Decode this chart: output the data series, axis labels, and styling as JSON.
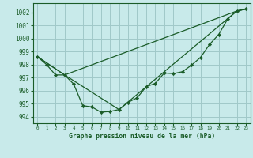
{
  "title": "Graphe pression niveau de la mer (hPa)",
  "background_color": "#c8eaea",
  "grid_color": "#a0c8c8",
  "line_color": "#1a5c28",
  "ylim": [
    993.5,
    1002.7
  ],
  "xlim": [
    -0.5,
    23.5
  ],
  "yticks": [
    994,
    995,
    996,
    997,
    998,
    999,
    1000,
    1001,
    1002
  ],
  "xticks": [
    0,
    1,
    2,
    3,
    4,
    5,
    6,
    7,
    8,
    9,
    10,
    11,
    12,
    13,
    14,
    15,
    16,
    17,
    18,
    19,
    20,
    21,
    22,
    23
  ],
  "series_main": {
    "x": [
      0,
      1,
      2,
      3,
      4,
      5,
      6,
      7,
      8,
      9,
      10,
      11,
      12,
      13,
      14,
      15,
      16,
      17,
      18,
      19,
      20,
      21,
      22,
      23
    ],
    "y": [
      998.6,
      998.0,
      997.2,
      997.2,
      996.5,
      994.85,
      994.75,
      994.35,
      994.4,
      994.55,
      995.1,
      995.45,
      996.3,
      996.55,
      997.35,
      997.3,
      997.45,
      997.95,
      998.55,
      999.55,
      1000.3,
      1001.5,
      1002.1,
      1002.25
    ]
  },
  "series_line1": {
    "x": [
      0,
      3,
      22,
      23
    ],
    "y": [
      998.6,
      997.2,
      1002.1,
      1002.25
    ]
  },
  "series_line2": {
    "x": [
      0,
      3,
      9,
      22,
      23
    ],
    "y": [
      998.6,
      997.2,
      994.55,
      1002.1,
      1002.25
    ]
  }
}
